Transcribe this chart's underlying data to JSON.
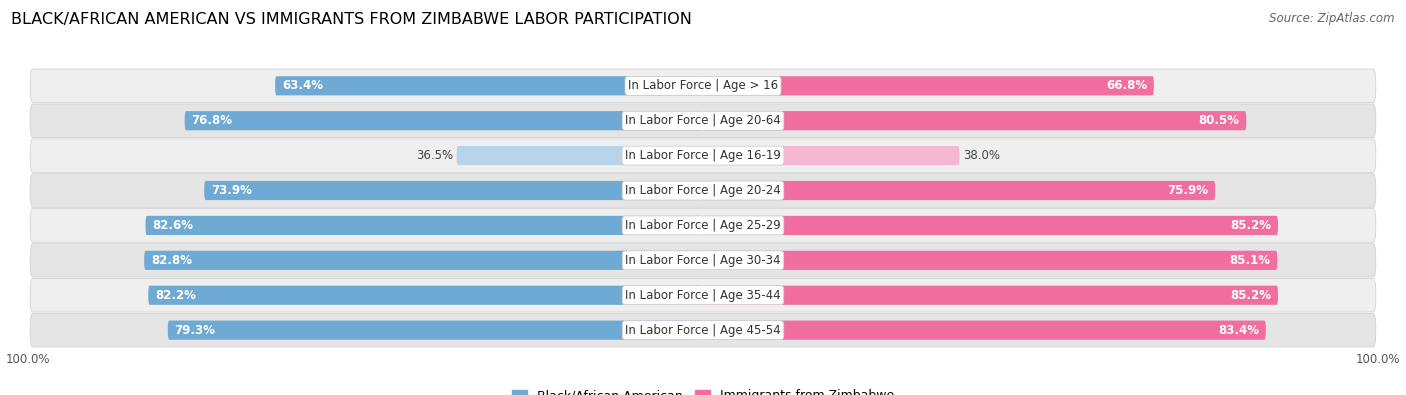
{
  "title": "BLACK/AFRICAN AMERICAN VS IMMIGRANTS FROM ZIMBABWE LABOR PARTICIPATION",
  "source": "Source: ZipAtlas.com",
  "categories": [
    "In Labor Force | Age > 16",
    "In Labor Force | Age 20-64",
    "In Labor Force | Age 16-19",
    "In Labor Force | Age 20-24",
    "In Labor Force | Age 25-29",
    "In Labor Force | Age 30-34",
    "In Labor Force | Age 35-44",
    "In Labor Force | Age 45-54"
  ],
  "black_values": [
    63.4,
    76.8,
    36.5,
    73.9,
    82.6,
    82.8,
    82.2,
    79.3
  ],
  "zimb_values": [
    66.8,
    80.5,
    38.0,
    75.9,
    85.2,
    85.1,
    85.2,
    83.4
  ],
  "black_color": "#6eaad4",
  "black_color_light": "#b8d4ea",
  "zimb_color": "#f06fa0",
  "zimb_color_light": "#f5b8d0",
  "label_black": "Black/African American",
  "label_zimb": "Immigrants from Zimbabwe",
  "row_bg_odd": "#efefef",
  "row_bg_even": "#e5e5e5",
  "title_fontsize": 11.5,
  "cat_fontsize": 8.5,
  "value_fontsize": 8.5,
  "source_fontsize": 8.5,
  "legend_fontsize": 9
}
